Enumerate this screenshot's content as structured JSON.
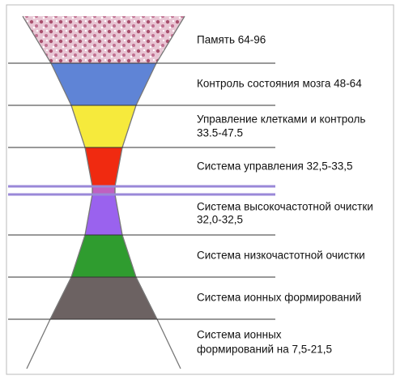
{
  "levels": [
    {
      "label": [
        "Память 64-96"
      ]
    },
    {
      "label": [
        "Контроль состояния мозга 48-64"
      ]
    },
    {
      "label": [
        "Управление клетками и контроль",
        "33.5-47.5"
      ]
    },
    {
      "label": [
        "Система управления 32,5-33,5"
      ]
    },
    {
      "label": [
        "Система высокочастотной очистки",
        "32,0-32,5"
      ]
    },
    {
      "label": [
        "Система низкочастотной очистки"
      ]
    },
    {
      "label": [
        "Система ионных формирований"
      ]
    },
    {
      "label": [
        "Система ионных",
        "формирований на 7,5-21,5"
      ]
    }
  ]
}
